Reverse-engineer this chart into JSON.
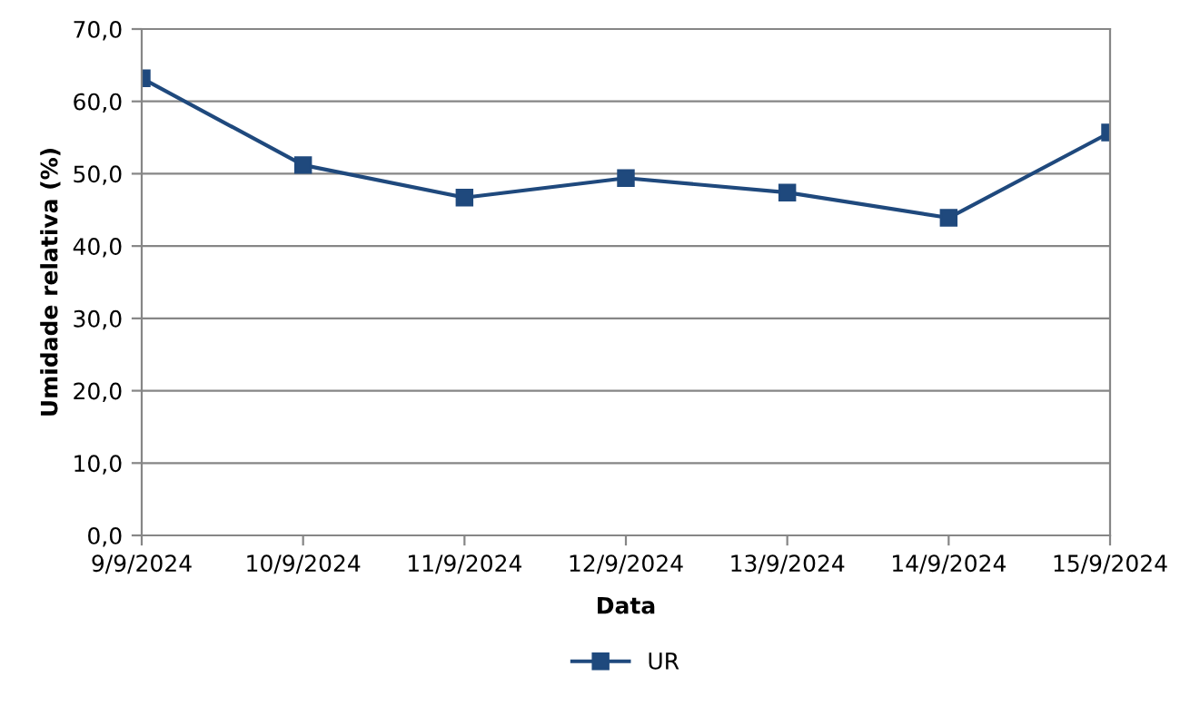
{
  "chart_data": {
    "type": "line",
    "xlabel": "Data",
    "ylabel": "Umidade relativa (%)",
    "categories": [
      "9/9/2024",
      "10/9/2024",
      "11/9/2024",
      "12/9/2024",
      "13/9/2024",
      "14/9/2024",
      "15/9/2024"
    ],
    "series": [
      {
        "name": "UR",
        "color": "#1f497d",
        "values": [
          63.2,
          51.2,
          46.7,
          49.4,
          47.4,
          43.9,
          55.7
        ]
      }
    ],
    "ylim": [
      0,
      70
    ],
    "yticks": [
      {
        "value": 0,
        "label": "0,0"
      },
      {
        "value": 10,
        "label": "10,0"
      },
      {
        "value": 20,
        "label": "20,0"
      },
      {
        "value": 30,
        "label": "30,0"
      },
      {
        "value": 40,
        "label": "40,0"
      },
      {
        "value": 50,
        "label": "50,0"
      },
      {
        "value": 60,
        "label": "60,0"
      },
      {
        "value": 70,
        "label": "70,0"
      }
    ],
    "grid": "y",
    "legend": "bottom",
    "marker": "square",
    "line_style": "solid"
  }
}
